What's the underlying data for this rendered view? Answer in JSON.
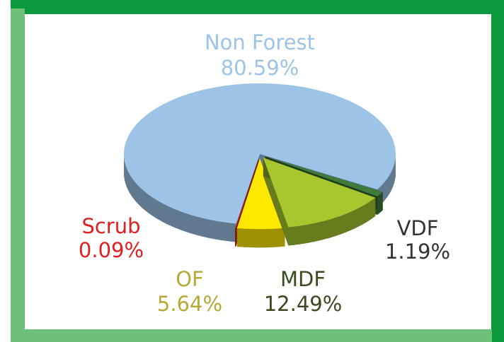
{
  "chart_data": {
    "type": "pie",
    "categories": [
      "Non Forest",
      "VDF",
      "MDF",
      "OF",
      "Scrub"
    ],
    "values": [
      80.59,
      1.19,
      12.49,
      5.64,
      0.09
    ],
    "value_labels": [
      "80.59%",
      "1.19%",
      "12.49%",
      "5.64%",
      "0.09%"
    ],
    "colors": [
      "#9dc3e6",
      "#3e7a3a",
      "#a8c62e",
      "#ffe800",
      "#e32222"
    ]
  }
}
